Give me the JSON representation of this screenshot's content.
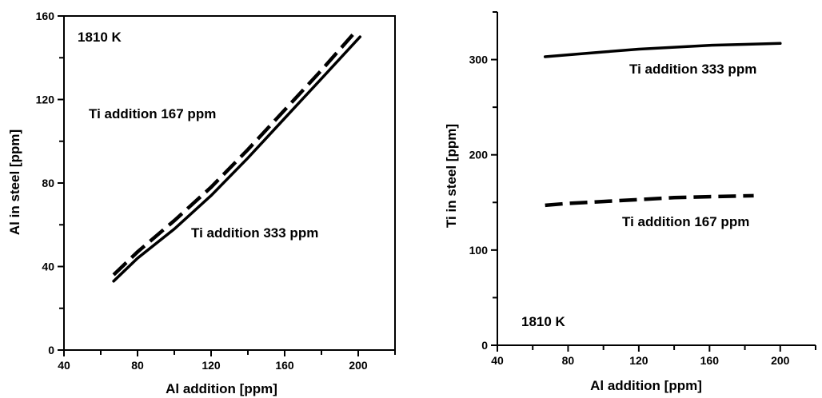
{
  "chart_data": [
    {
      "type": "line",
      "xlabel": "Al addition [ppm]",
      "ylabel": "Al in steel [ppm]",
      "xlim": [
        40,
        220
      ],
      "ylim": [
        0,
        160
      ],
      "xticks": [
        40,
        80,
        120,
        160,
        200
      ],
      "yticks": [
        0,
        40,
        80,
        120,
        160
      ],
      "temperature_label": "1810 K",
      "annotations": [
        "Ti addition 167 ppm",
        "Ti addition 333 ppm"
      ],
      "series": [
        {
          "name": "Ti addition 333 ppm",
          "style": "solid",
          "x": [
            67,
            80,
            100,
            120,
            140,
            160,
            180,
            201
          ],
          "y": [
            33,
            44,
            58,
            74,
            92,
            111,
            130,
            150
          ]
        },
        {
          "name": "Ti addition 167 ppm",
          "style": "dashed",
          "x": [
            67,
            80,
            100,
            120,
            140,
            160,
            180,
            197
          ],
          "y": [
            36,
            47,
            62,
            78,
            96,
            115,
            134,
            151
          ]
        }
      ],
      "grid": false
    },
    {
      "type": "line",
      "xlabel": "Al addition [ppm]",
      "ylabel": "Ti in steel [ppm]",
      "xlim": [
        40,
        220
      ],
      "ylim": [
        0,
        350
      ],
      "xticks": [
        40,
        80,
        120,
        160,
        200
      ],
      "yticks": [
        0,
        100,
        200,
        300
      ],
      "temperature_label": "1810 K",
      "annotations": [
        "Ti addition 333 ppm",
        "Ti addition 167 ppm"
      ],
      "series": [
        {
          "name": "Ti addition 333 ppm",
          "style": "solid",
          "x": [
            67,
            80,
            100,
            120,
            140,
            160,
            180,
            200
          ],
          "y": [
            303,
            305,
            308,
            311,
            313,
            315,
            316,
            317
          ]
        },
        {
          "name": "Ti addition 167 ppm",
          "style": "dashed",
          "x": [
            67,
            80,
            100,
            120,
            140,
            160,
            185
          ],
          "y": [
            147,
            149,
            151,
            153,
            155,
            156,
            157
          ]
        }
      ],
      "grid": false
    }
  ]
}
